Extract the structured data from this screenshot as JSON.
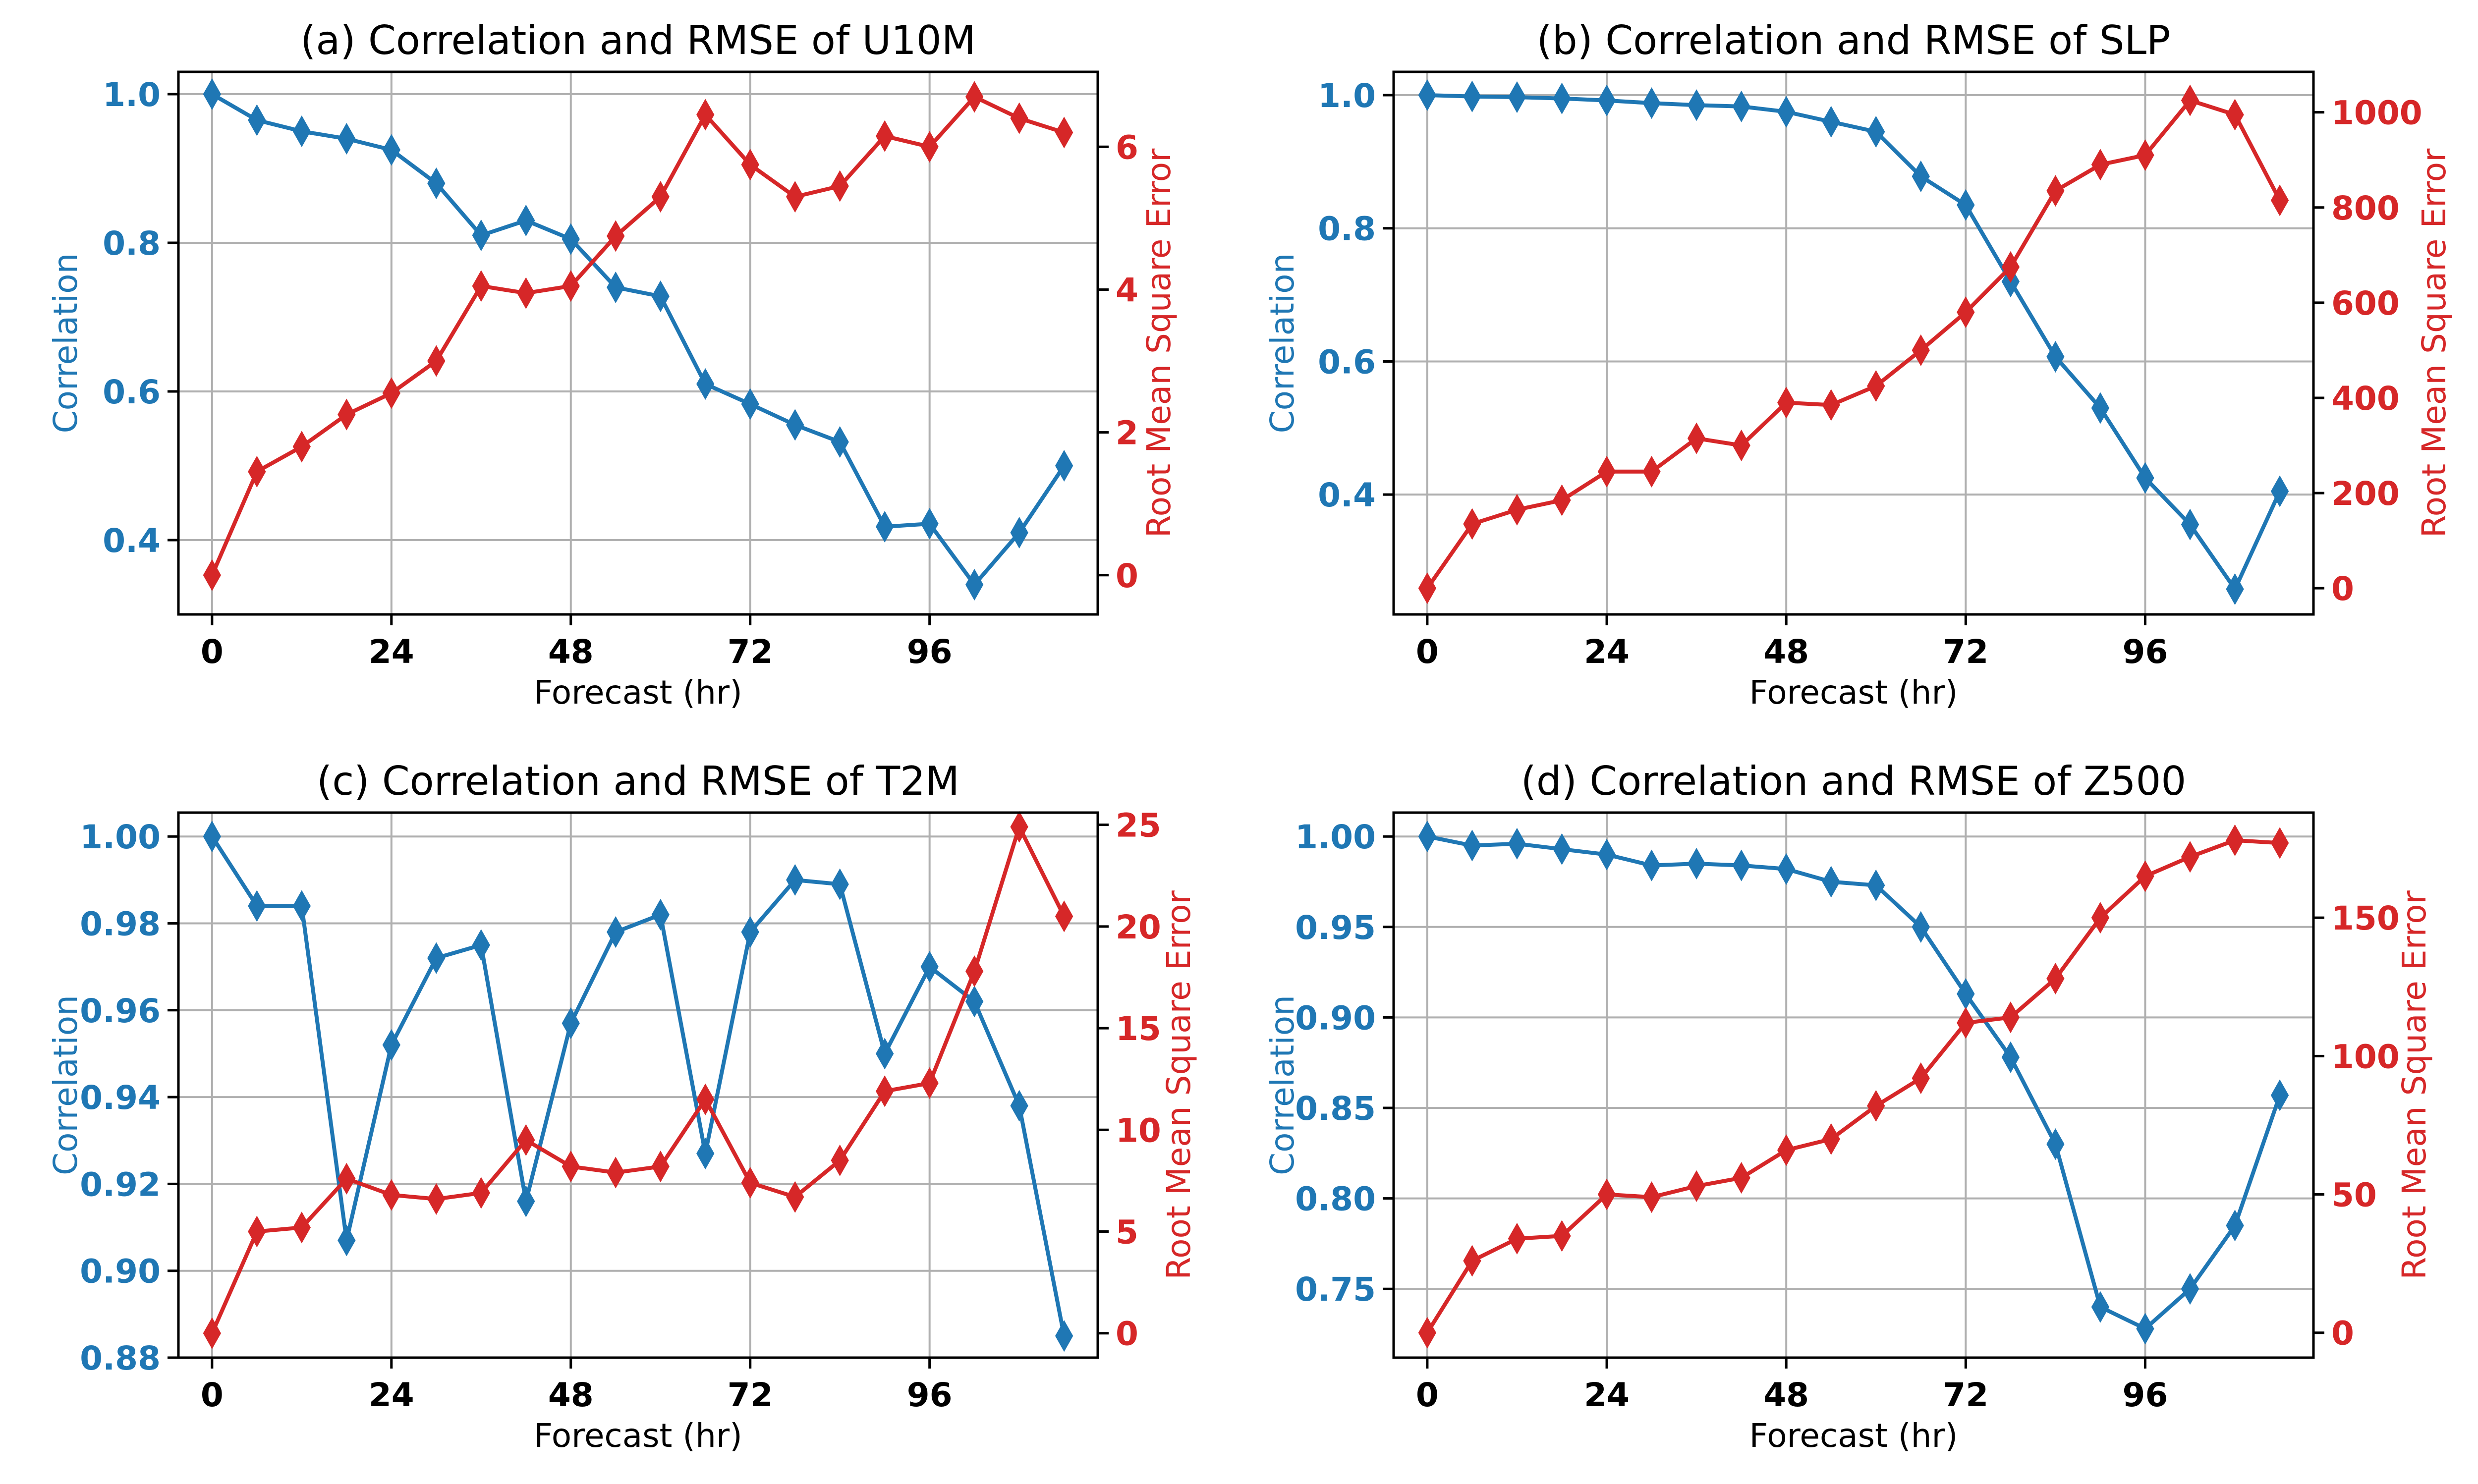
{
  "colors": {
    "correlation": "#1f77b4",
    "rmse": "#d62728",
    "grid": "#b0b0b0"
  },
  "chart_data": [
    {
      "type": "line",
      "title": "(a) Correlation and RMSE of U10M",
      "xlabel": "Forecast (hr)",
      "ylabel_left": "Correlation",
      "ylabel_right": "Root Mean Square Error",
      "xlim": [
        -4.5,
        118.5
      ],
      "xticks": [
        0,
        24,
        48,
        72,
        96
      ],
      "grid": true,
      "left_ylim": [
        0.3,
        1.03
      ],
      "left_yticks": [
        "0.4",
        "0.6",
        "0.8",
        "1.0"
      ],
      "right_ylim": [
        -0.55,
        7.05
      ],
      "right_yticks": [
        "0",
        "2",
        "4",
        "6"
      ],
      "x": [
        0,
        6,
        12,
        18,
        24,
        30,
        36,
        42,
        48,
        54,
        60,
        66,
        72,
        78,
        84,
        90,
        96,
        102,
        108,
        114
      ],
      "series": [
        {
          "name": "Correlation",
          "axis": "left",
          "marker": "diamond",
          "values": [
            1.0,
            0.965,
            0.95,
            0.94,
            0.925,
            0.88,
            0.81,
            0.83,
            0.805,
            0.74,
            0.728,
            0.61,
            0.583,
            0.555,
            0.532,
            0.418,
            0.422,
            0.34,
            0.41,
            0.5
          ]
        },
        {
          "name": "Root Mean Square Error",
          "axis": "right",
          "marker": "diamond",
          "values": [
            0.0,
            1.45,
            1.8,
            2.25,
            2.55,
            3.0,
            4.05,
            3.95,
            4.05,
            4.75,
            5.3,
            6.45,
            5.75,
            5.3,
            5.45,
            6.15,
            6.0,
            6.7,
            6.4,
            6.2
          ]
        }
      ]
    },
    {
      "type": "line",
      "title": "(b) Correlation and RMSE of SLP",
      "xlabel": "Forecast (hr)",
      "ylabel_left": "Correlation",
      "ylabel_right": "Root Mean Square Error",
      "xlim": [
        -4.5,
        118.5
      ],
      "xticks": [
        0,
        24,
        48,
        72,
        96
      ],
      "grid": true,
      "left_ylim": [
        0.22,
        1.035
      ],
      "left_yticks": [
        "0.4",
        "0.6",
        "0.8",
        "1.0"
      ],
      "right_ylim": [
        -55,
        1085
      ],
      "right_yticks": [
        "0",
        "200",
        "400",
        "600",
        "800",
        "1000"
      ],
      "x": [
        0,
        6,
        12,
        18,
        24,
        30,
        36,
        42,
        48,
        54,
        60,
        66,
        72,
        78,
        84,
        90,
        96,
        102,
        108,
        114
      ],
      "series": [
        {
          "name": "Correlation",
          "axis": "left",
          "marker": "diamond",
          "values": [
            1.0,
            0.998,
            0.997,
            0.995,
            0.992,
            0.988,
            0.985,
            0.983,
            0.975,
            0.96,
            0.945,
            0.878,
            0.835,
            0.72,
            0.607,
            0.53,
            0.425,
            0.355,
            0.258,
            0.405
          ]
        },
        {
          "name": "Root Mean Square Error",
          "axis": "right",
          "marker": "diamond",
          "values": [
            0,
            135,
            165,
            185,
            245,
            245,
            315,
            300,
            390,
            385,
            425,
            500,
            580,
            675,
            835,
            890,
            910,
            1025,
            995,
            815
          ]
        }
      ]
    },
    {
      "type": "line",
      "title": "(c) Correlation and RMSE of T2M",
      "xlabel": "Forecast (hr)",
      "ylabel_left": "Correlation",
      "ylabel_right": "Root Mean Square Error",
      "xlim": [
        -4.5,
        118.5
      ],
      "xticks": [
        0,
        24,
        48,
        72,
        96
      ],
      "grid": true,
      "left_ylim": [
        0.88,
        1.0055
      ],
      "left_yticks": [
        "0.88",
        "0.90",
        "0.92",
        "0.94",
        "0.96",
        "0.98",
        "1.00"
      ],
      "right_ylim": [
        -1.2,
        25.6
      ],
      "right_yticks": [
        "0",
        "5",
        "10",
        "15",
        "20",
        "25"
      ],
      "x": [
        0,
        6,
        12,
        18,
        24,
        30,
        36,
        42,
        48,
        54,
        60,
        66,
        72,
        78,
        84,
        90,
        96,
        102,
        108,
        114
      ],
      "series": [
        {
          "name": "Correlation",
          "axis": "left",
          "marker": "diamond",
          "values": [
            1.0,
            0.984,
            0.984,
            0.907,
            0.952,
            0.972,
            0.975,
            0.916,
            0.957,
            0.978,
            0.982,
            0.927,
            0.978,
            0.99,
            0.989,
            0.95,
            0.97,
            0.962,
            0.938,
            0.885
          ]
        },
        {
          "name": "Root Mean Square Error",
          "axis": "right",
          "marker": "diamond",
          "values": [
            0.0,
            5.0,
            5.2,
            7.6,
            6.8,
            6.6,
            6.9,
            9.5,
            8.2,
            7.9,
            8.2,
            11.5,
            7.4,
            6.7,
            8.5,
            11.9,
            12.3,
            17.8,
            24.9,
            20.5
          ]
        }
      ]
    },
    {
      "type": "line",
      "title": "(d) Correlation and RMSE of Z500",
      "xlabel": "Forecast (hr)",
      "ylabel_left": "Correlation",
      "ylabel_right": "Root Mean Square Error",
      "xlim": [
        -4.5,
        118.5
      ],
      "xticks": [
        0,
        24,
        48,
        72,
        96
      ],
      "grid": true,
      "left_ylim": [
        0.712,
        1.0132
      ],
      "left_yticks": [
        "0.75",
        "0.80",
        "0.85",
        "0.90",
        "0.95",
        "1.00"
      ],
      "right_ylim": [
        -9,
        188
      ],
      "right_yticks": [
        "0",
        "50",
        "100",
        "150"
      ],
      "x": [
        0,
        6,
        12,
        18,
        24,
        30,
        36,
        42,
        48,
        54,
        60,
        66,
        72,
        78,
        84,
        90,
        96,
        102,
        108,
        114
      ],
      "series": [
        {
          "name": "Correlation",
          "axis": "left",
          "marker": "diamond",
          "values": [
            1.0,
            0.995,
            0.996,
            0.993,
            0.99,
            0.984,
            0.985,
            0.984,
            0.982,
            0.975,
            0.973,
            0.95,
            0.913,
            0.878,
            0.83,
            0.74,
            0.728,
            0.75,
            0.785,
            0.857
          ]
        },
        {
          "name": "Root Mean Square Error",
          "axis": "right",
          "marker": "diamond",
          "values": [
            0,
            26,
            34,
            35,
            50,
            49,
            53,
            56,
            66,
            70,
            82,
            92,
            112,
            114,
            128,
            150,
            165,
            172,
            178,
            177
          ]
        }
      ]
    }
  ]
}
